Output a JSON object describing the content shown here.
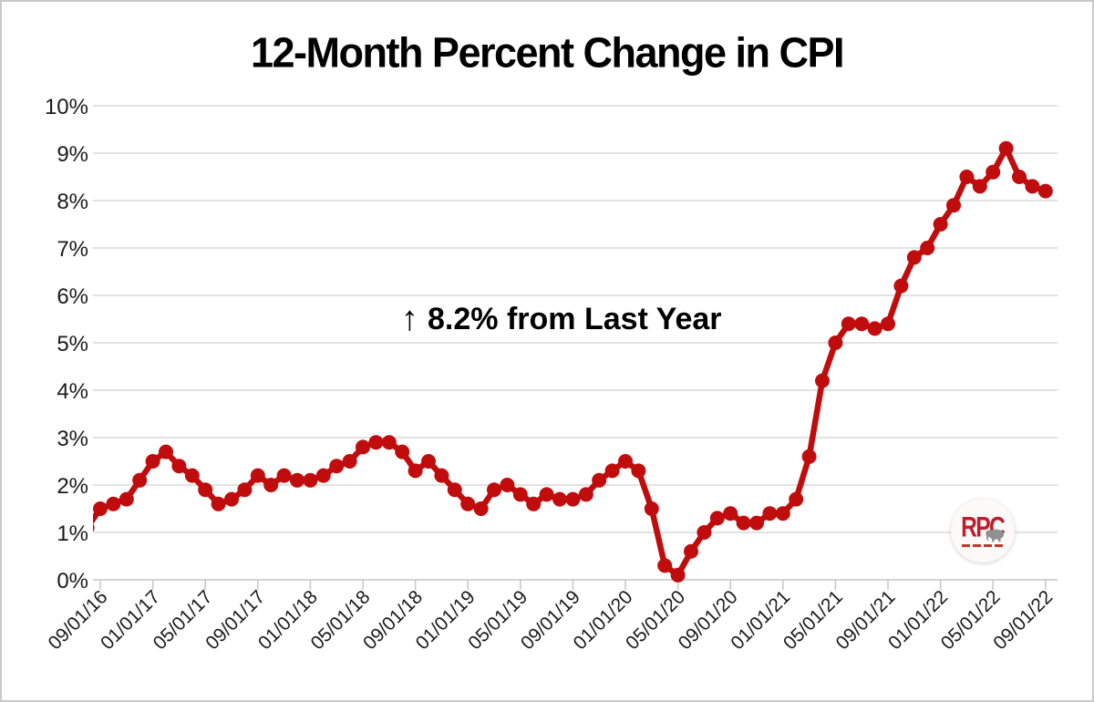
{
  "annotation": {
    "arrow": "↑",
    "text": "8.2% from Last Year"
  },
  "logo": {
    "text": "RPC"
  },
  "colors": {
    "line": "#c00c0c",
    "grid": "#d9d9d9",
    "axis": "#c6c6c6",
    "text": "#1a1a1a",
    "logo_red": "#be1e2d",
    "logo_gray": "#8e9192"
  },
  "chart_data": {
    "type": "line",
    "title": "12-Month Percent Change in CPI",
    "x_start_month": "08/01/16",
    "x_frequency": "monthly",
    "values": [
      1.1,
      1.5,
      1.6,
      1.7,
      2.1,
      2.5,
      2.7,
      2.4,
      2.2,
      1.9,
      1.6,
      1.7,
      1.9,
      2.2,
      2.0,
      2.2,
      2.1,
      2.1,
      2.2,
      2.4,
      2.5,
      2.8,
      2.9,
      2.9,
      2.7,
      2.3,
      2.5,
      2.2,
      1.9,
      1.6,
      1.5,
      1.9,
      2.0,
      1.8,
      1.6,
      1.8,
      1.7,
      1.7,
      1.8,
      2.1,
      2.3,
      2.5,
      2.3,
      1.5,
      0.3,
      0.1,
      0.6,
      1.0,
      1.3,
      1.4,
      1.2,
      1.2,
      1.4,
      1.4,
      1.7,
      2.6,
      4.2,
      5.0,
      5.4,
      5.4,
      5.3,
      5.4,
      6.2,
      6.8,
      7.0,
      7.5,
      7.9,
      8.5,
      8.3,
      8.6,
      9.1,
      8.5,
      8.3,
      8.2
    ],
    "x_tick_labels": [
      "09/01/16",
      "01/01/17",
      "05/01/17",
      "09/01/17",
      "01/01/18",
      "05/01/18",
      "09/01/18",
      "01/01/19",
      "05/01/19",
      "09/01/19",
      "01/01/20",
      "05/01/20",
      "09/01/20",
      "01/01/21",
      "05/01/21",
      "09/01/21",
      "01/01/22",
      "05/01/22",
      "09/01/22"
    ],
    "x_tick_start_index": 1,
    "x_tick_every": 4,
    "ylim": [
      0,
      10
    ],
    "y_tick_labels": [
      "0%",
      "1%",
      "2%",
      "3%",
      "4%",
      "5%",
      "6%",
      "7%",
      "8%",
      "9%",
      "10%"
    ],
    "grid": "horizontal gridlines at every 1%",
    "legend": "none",
    "annotation": "↑ 8.2% from Last Year"
  }
}
